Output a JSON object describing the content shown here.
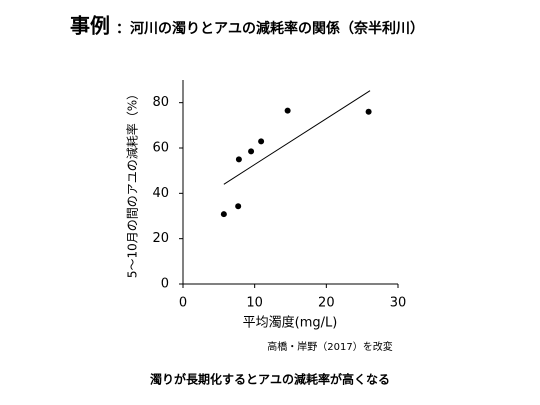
{
  "chart_data": {
    "type": "scatter",
    "title": "事例",
    "subtitle": "：河川の濁りとアユの減耗率の関係（奈半利川）",
    "x_label": "平均濁度(mg/L)",
    "y_label": "5～10月の間のアユの減耗率（%）",
    "source": "高橋・岸野（2017）を改変",
    "caption": "濁りが長期化するとアユの減耗率が高くなる",
    "x": [
      5.7,
      7.7,
      7.8,
      9.5,
      10.9,
      14.6,
      25.9
    ],
    "values": [
      30.8,
      34.3,
      55,
      58.5,
      62.9,
      76.5,
      76
    ],
    "color": "#000000",
    "trendline": {
      "x": [
        5.7,
        26.1
      ],
      "y": [
        44,
        85.3
      ]
    },
    "xlim": [
      0,
      30
    ],
    "xticks": [
      0,
      10,
      20,
      30
    ],
    "ylim": [
      0,
      90
    ],
    "yticks": [
      0,
      20,
      40,
      60,
      80
    ]
  }
}
